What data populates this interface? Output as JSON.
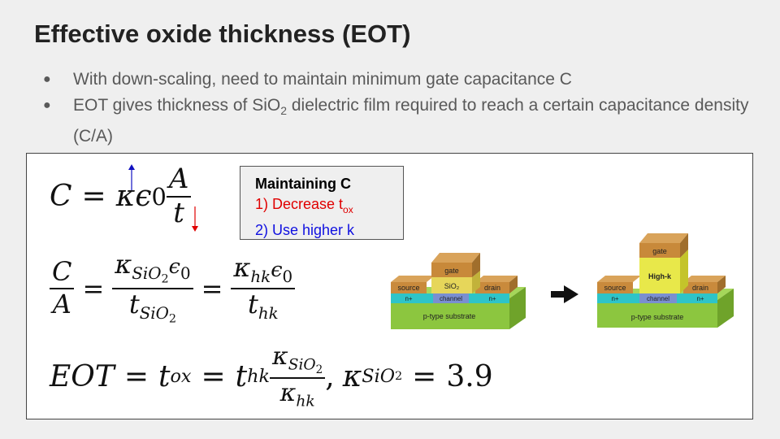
{
  "title": "Effective oxide thickness (EOT)",
  "bullets": [
    "With down-scaling, need to maintain minimum gate capacitance C",
    {
      "pre": "EOT gives thickness of SiO",
      "sub": "2",
      "post": " dielectric film required to reach a certain capacitance density (C/A)"
    }
  ],
  "callout": {
    "title": "Maintaining C",
    "item1_pre": "1) Decrease t",
    "item1_sub": "ox",
    "item2": "2) Use higher k"
  },
  "equations": {
    "eq1": {
      "C": "C",
      "eq": "=",
      "kappa": "κ",
      "eps": "ϵ",
      "zero": "0",
      "A": "A",
      "t": "t"
    },
    "eq2": {
      "C": "C",
      "A": "A",
      "eq": "=",
      "kSiO2": "κ",
      "SiO2": "SiO",
      "two": "2",
      "eps0": "ϵ",
      "zero": "0",
      "tSiO2": "t",
      "khk": "κ",
      "hk": "hk",
      "thk": "t"
    },
    "eq3": {
      "lhs": "EOT",
      "eq": "=",
      "tox": "t",
      "ox": "ox",
      "thk": "t",
      "hk": "hk",
      "kSiO2": "κ",
      "SiO2": "SiO",
      "two": "2",
      "khk": "κ",
      "comma": ",",
      "value": "3.9"
    }
  },
  "device_left": {
    "gate": "gate",
    "oxide": "SiO₂",
    "source": "source",
    "drain": "drain",
    "channel": "channel",
    "n_left": "n+",
    "n_right": "n+",
    "substrate": "p-type substrate"
  },
  "device_right": {
    "gate": "gate",
    "oxide": "High-k",
    "source": "source",
    "drain": "drain",
    "channel": "channel",
    "n_left": "n+",
    "n_right": "n+",
    "substrate": "p-type substrate"
  },
  "icons": {
    "transition": "right-arrow-icon"
  },
  "colors": {
    "decrease": "#e00000",
    "higher_k": "#1010e0",
    "gate": "#c8893a",
    "sio2": "#e6d65a",
    "highk": "#e8e84a",
    "contact": "#c98a3c",
    "channel": "#7a8fd0",
    "nplus": "#2ec4c8",
    "substrate": "#8cc63f"
  }
}
